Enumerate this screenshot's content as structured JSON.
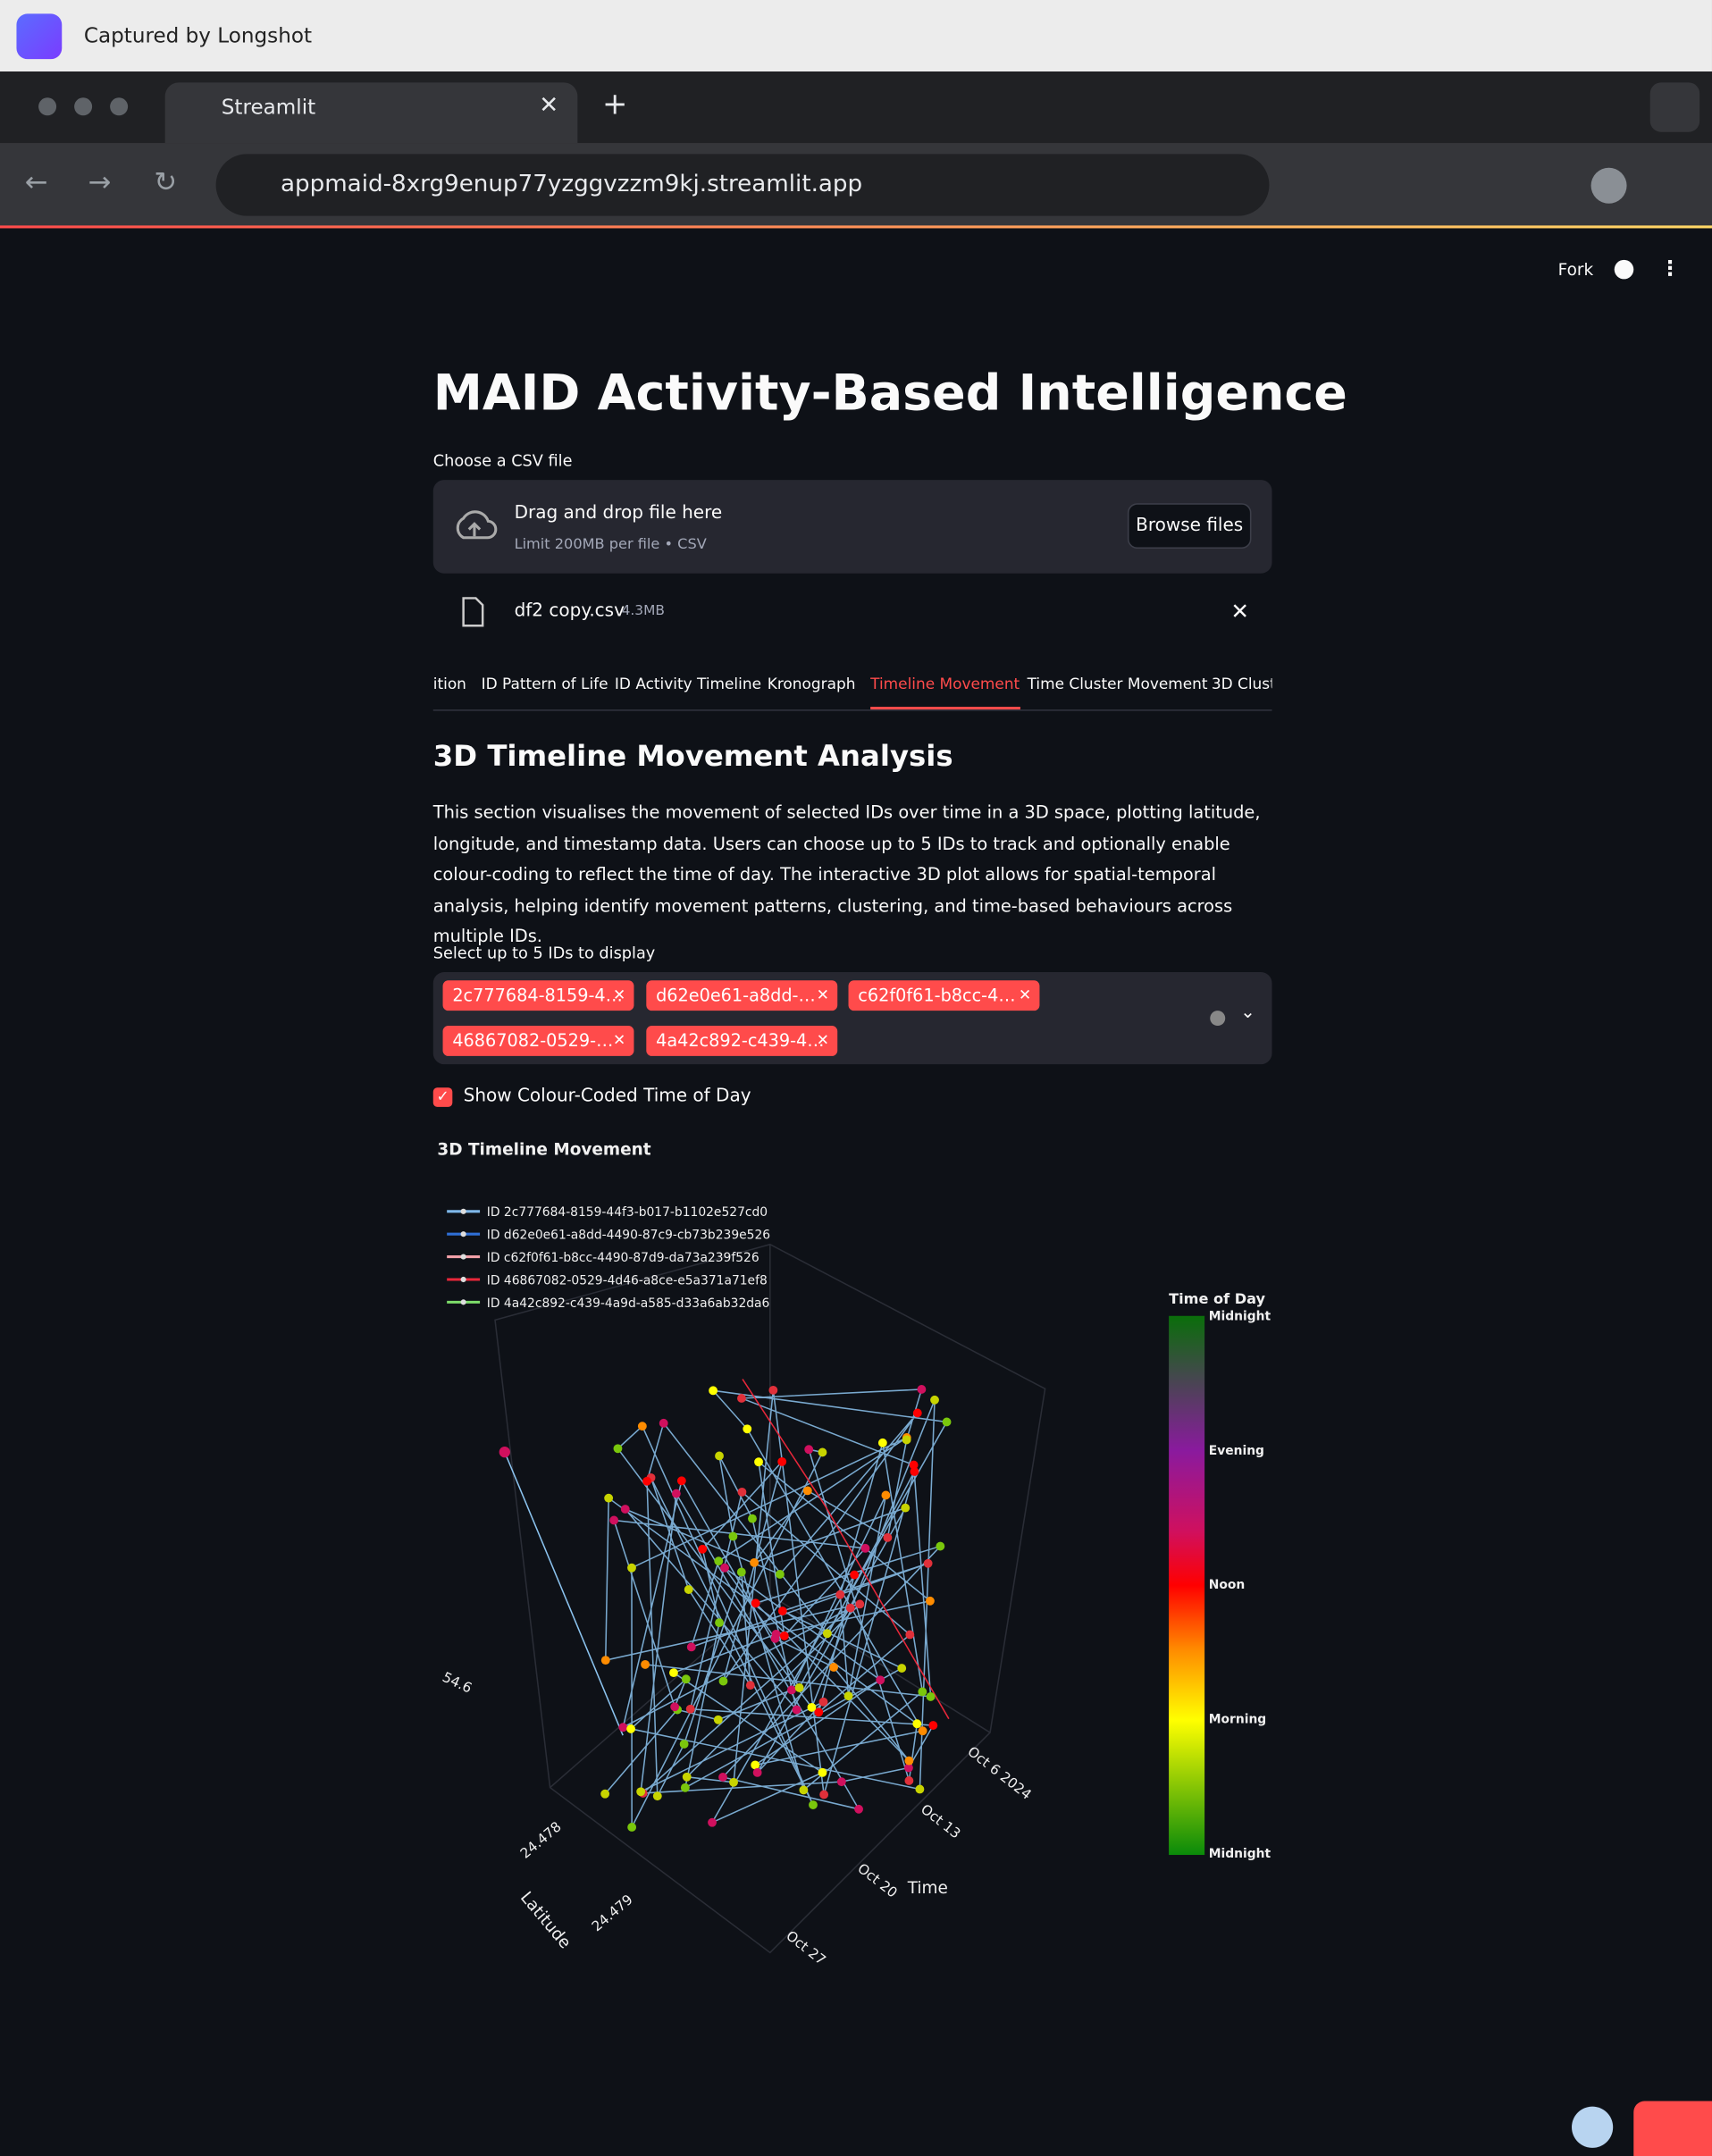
{
  "capture_bar": {
    "label": "Captured by Longshot"
  },
  "browser": {
    "tab_title": "Streamlit",
    "url": "appmaid-8xrg9enup77yzggvzzm9kj.streamlit.app"
  },
  "app": {
    "toolbar": {
      "fork": "Fork"
    },
    "title": "MAID Activity-Based Intelligence",
    "uploader": {
      "label": "Choose a CSV file",
      "drop_text": "Drag and drop file here",
      "limit": "Limit 200MB per file • CSV",
      "button": "Browse files",
      "file_name": "df2 copy.csv",
      "file_size": "4.3MB"
    },
    "tabs": [
      "ition",
      "ID Pattern of Life",
      "ID Activity Timeline",
      "Kronograph",
      "Timeline Movement",
      "Time Cluster Movement",
      "3D Clust"
    ],
    "active_tab": 4,
    "section_title": "3D Timeline Movement Analysis",
    "description": "This section visualises the movement of selected IDs over time in a 3D space, plotting latitude, longitude, and timestamp data. Users can choose up to 5 IDs to track and optionally enable colour-coding to reflect the time of day. The interactive 3D plot allows for spatial-temporal analysis, helping identify movement patterns, clustering, and time-based behaviours across multiple IDs.",
    "multiselect": {
      "label": "Select up to 5 IDs to display",
      "chips": [
        "2c777684-8159-4…",
        "d62e0e61-a8dd-…",
        "c62f0f61-b8cc-4…",
        "46867082-0529-…",
        "4a42c892-c439-4…"
      ]
    },
    "checkbox": {
      "label": "Show Colour-Coded Time of Day",
      "checked": true
    },
    "plot": {
      "title": "3D Timeline Movement",
      "legend": [
        {
          "name": "ID 2c777684-8159-44f3-b017-b1102e527cd0",
          "color": "#7fb8ea"
        },
        {
          "name": "ID d62e0e61-a8dd-4490-87c9-cb73b239e526",
          "color": "#2f6fd6"
        },
        {
          "name": "ID c62f0f61-b8cc-4490-87d9-da73a239f526",
          "color": "#f2a0a8"
        },
        {
          "name": "ID 46867082-0529-4d46-a8ce-e5a371a71ef8",
          "color": "#e8273a"
        },
        {
          "name": "ID 4a42c892-c439-4a9d-a585-d33a6ab32da6",
          "color": "#7ddc6a"
        }
      ],
      "colorbar": {
        "title": "Time of Day",
        "labels": [
          "Midnight",
          "Evening",
          "Noon",
          "Morning",
          "Midnight"
        ]
      },
      "axis_titles": {
        "latitude": "Latitude",
        "time": "Time"
      },
      "time_ticks": [
        "Oct 6 2024",
        "Oct 13",
        "Oct 20",
        "Oct 27"
      ],
      "latitude_ticks": [
        "24.478",
        "24.479"
      ],
      "longitude_ticks": [
        "54.6"
      ]
    }
  }
}
